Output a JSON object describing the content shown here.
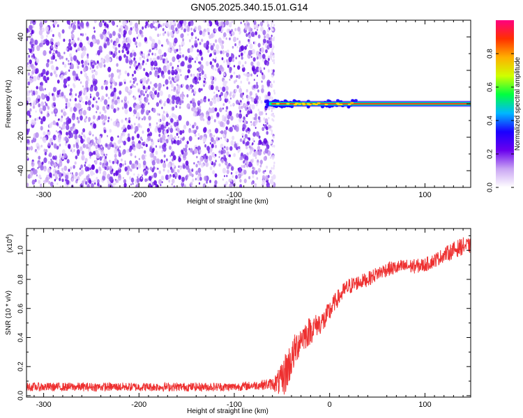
{
  "title": "GN05.2025.340.15.01.G14",
  "chart_data": [
    {
      "type": "heatmap",
      "title": "GN05.2025.340.15.01.G14",
      "xlabel": "Height of straight line (km)",
      "ylabel": "Frequency (Hz)",
      "xlim": [
        -318,
        148
      ],
      "ylim": [
        -50,
        50
      ],
      "x_ticks": [
        -300,
        -200,
        -100,
        0,
        100
      ],
      "x_tick_labels": [
        "-300",
        "-200",
        "-100",
        "0",
        "100"
      ],
      "y_ticks": [
        -40,
        -20,
        0,
        20,
        40
      ],
      "y_tick_labels": [
        "-40",
        "-20",
        "0",
        "20",
        "40"
      ],
      "noise_region_km": [
        -318,
        -58
      ],
      "signal_line_hz": 0,
      "colorbar": {
        "label": "Normalized spectral amplitude",
        "range": [
          0,
          1
        ],
        "ticks": [
          0.0,
          0.2,
          0.4,
          0.6,
          0.8
        ],
        "tick_labels": [
          "0.0",
          "0.2",
          "0.4",
          "0.6",
          "0.8"
        ],
        "colors": [
          "#ffffff",
          "#c9a5f3",
          "#6a00ee",
          "#1a00ff",
          "#00b7ff",
          "#00ff40",
          "#d0ff00",
          "#ffb000",
          "#ff3000",
          "#ff0080"
        ]
      }
    },
    {
      "type": "line",
      "xlabel": "Height of straight line (km)",
      "ylabel": "SNR (10 * v/v)",
      "y_multiplier": "(x10",
      "y_multiplier_exp": "4",
      "xlim": [
        -318,
        148
      ],
      "ylim": [
        -0.01,
        1.15
      ],
      "x_ticks": [
        -300,
        -200,
        -100,
        0,
        100
      ],
      "x_tick_labels": [
        "-300",
        "-200",
        "-100",
        "0",
        "100"
      ],
      "y_ticks": [
        0.0,
        0.2,
        0.4,
        0.6,
        0.8,
        1.0
      ],
      "y_tick_labels": [
        "0.0",
        "0.2",
        "0.4",
        "0.6",
        "0.8",
        "1.0"
      ],
      "series": [
        {
          "name": "SNR",
          "color": "#ee3030",
          "x": [
            -318,
            -300,
            -250,
            -200,
            -150,
            -100,
            -80,
            -60,
            -50,
            -45,
            -40,
            -35,
            -30,
            -25,
            -20,
            -15,
            -10,
            -5,
            0,
            5,
            10,
            15,
            20,
            30,
            40,
            50,
            60,
            70,
            80,
            90,
            100,
            110,
            120,
            130,
            140,
            148
          ],
          "y": [
            0.06,
            0.06,
            0.06,
            0.06,
            0.06,
            0.06,
            0.07,
            0.08,
            0.1,
            0.18,
            0.25,
            0.33,
            0.4,
            0.42,
            0.45,
            0.48,
            0.5,
            0.52,
            0.58,
            0.64,
            0.68,
            0.72,
            0.75,
            0.78,
            0.8,
            0.84,
            0.87,
            0.88,
            0.89,
            0.89,
            0.9,
            0.93,
            0.97,
            1.0,
            1.03,
            1.03
          ],
          "noise_amplitude": [
            0.03,
            0.03,
            0.03,
            0.03,
            0.03,
            0.03,
            0.03,
            0.04,
            0.12,
            0.16,
            0.12,
            0.12,
            0.1,
            0.1,
            0.1,
            0.08,
            0.08,
            0.08,
            0.08,
            0.06,
            0.06,
            0.06,
            0.06,
            0.05,
            0.05,
            0.05,
            0.05,
            0.05,
            0.05,
            0.05,
            0.05,
            0.05,
            0.05,
            0.06,
            0.06,
            0.05
          ]
        }
      ]
    }
  ]
}
